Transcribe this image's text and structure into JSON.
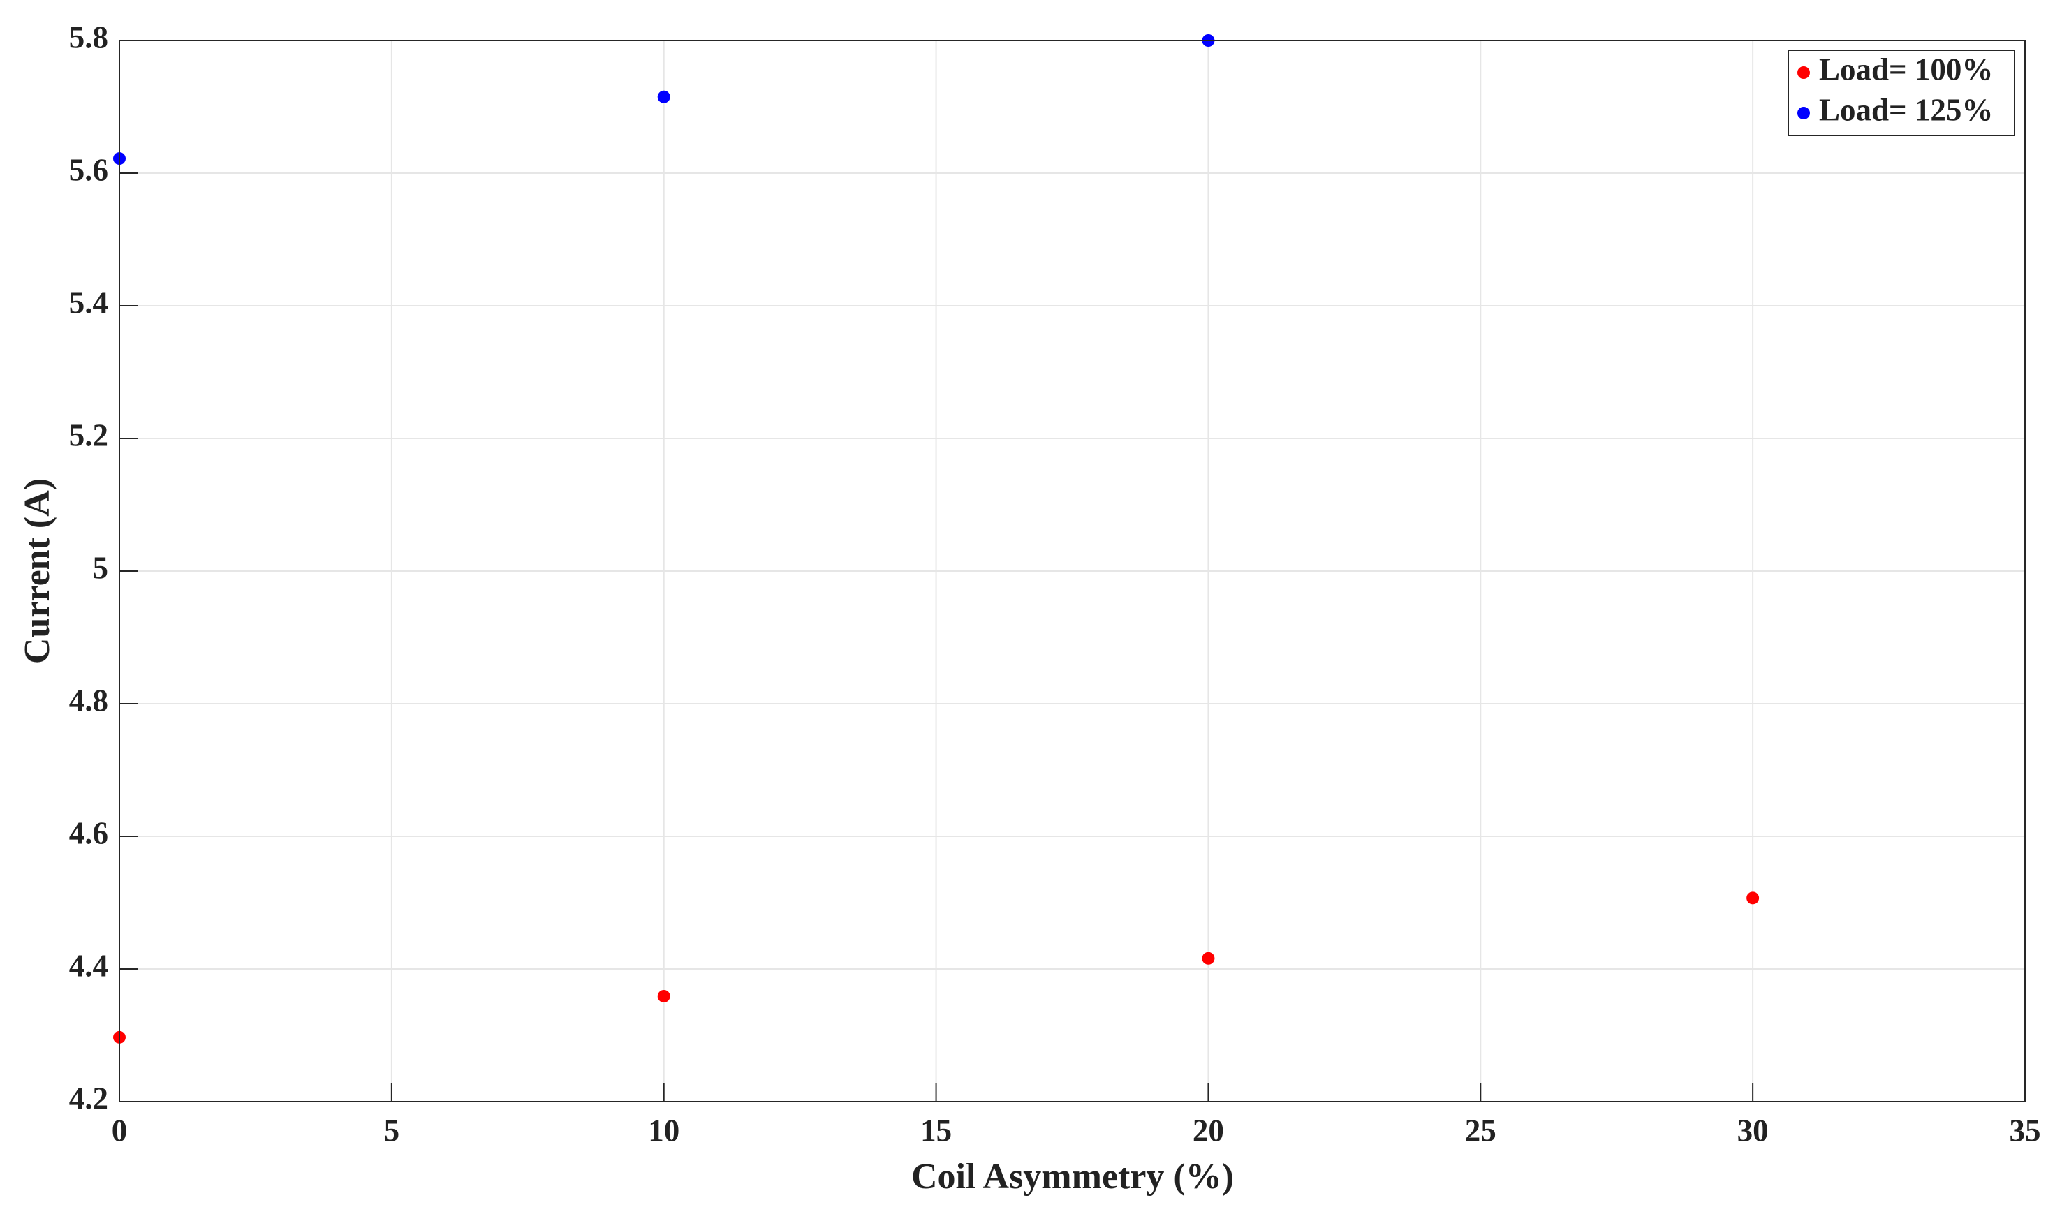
{
  "chart_data": {
    "type": "scatter",
    "xlabel": "Coil Asymmetry (%)",
    "ylabel": "Current (A)",
    "series": [
      {
        "name": "Load= 100%",
        "color": "#ff0000",
        "x": [
          0,
          10,
          20,
          30
        ],
        "values": [
          4.297,
          4.359,
          4.416,
          4.507
        ]
      },
      {
        "name": "Load= 125%",
        "color": "#0000ff",
        "x": [
          0,
          10,
          20
        ],
        "values": [
          5.622,
          5.715,
          5.8
        ]
      }
    ],
    "xlim": [
      0,
      35
    ],
    "xticks": [
      0,
      5,
      10,
      15,
      20,
      25,
      30,
      35
    ],
    "ylim": [
      4.2,
      5.8
    ],
    "yticks": [
      4.2,
      4.4,
      4.6,
      4.8,
      5,
      5.2,
      5.4,
      5.6,
      5.8
    ],
    "grid": true,
    "legend": "upper-right"
  }
}
